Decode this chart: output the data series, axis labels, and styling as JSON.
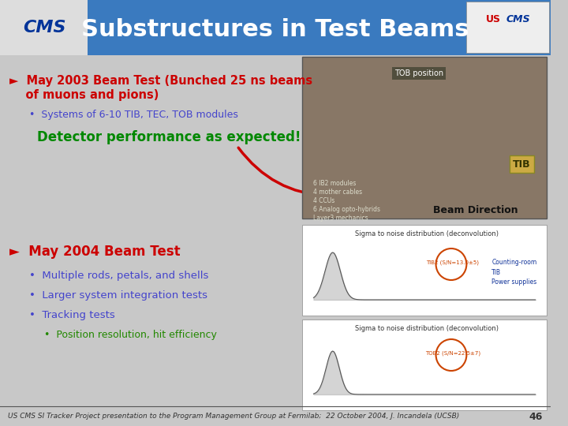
{
  "title": "Substructures in Test Beams",
  "title_bg_color": "#3a7abf",
  "slide_bg_color": "#c8c8c8",
  "title_text_color": "#ffffff",
  "title_fontsize": 22,
  "bullet1_header_line1": "►  May 2003 Beam Test (Bunched 25 ns beams",
  "bullet1_header_line2": "    of muons and pions)",
  "bullet1_sub": "Systems of 6-10 TIB, TEC, TOB modules",
  "bullet1_highlight": "Detector performance as expected!",
  "bullet2_header": "►  May 2004 Beam Test",
  "bullet2_subs": [
    "Multiple rods, petals, and shells",
    "Larger system integration tests",
    "Tracking tests"
  ],
  "bullet2_subsub": "Position resolution, hit efficiency",
  "footer": "US CMS SI Tracker Project presentation to the Program Management Group at Fermilab;  22 October 2004, J. Incandela (UCSB)",
  "page_num": "46",
  "header_color": "#cc0000",
  "sub_color": "#4444cc",
  "highlight_color": "#008800",
  "beam_direction_text": "Beam Direction",
  "arrow_color": "#cc0000",
  "small_texts": [
    "6 IB2 modules",
    "4 mother cables",
    "4 CCUs",
    "6 Analog opto-hybrids",
    "Layer3 mechanics"
  ]
}
